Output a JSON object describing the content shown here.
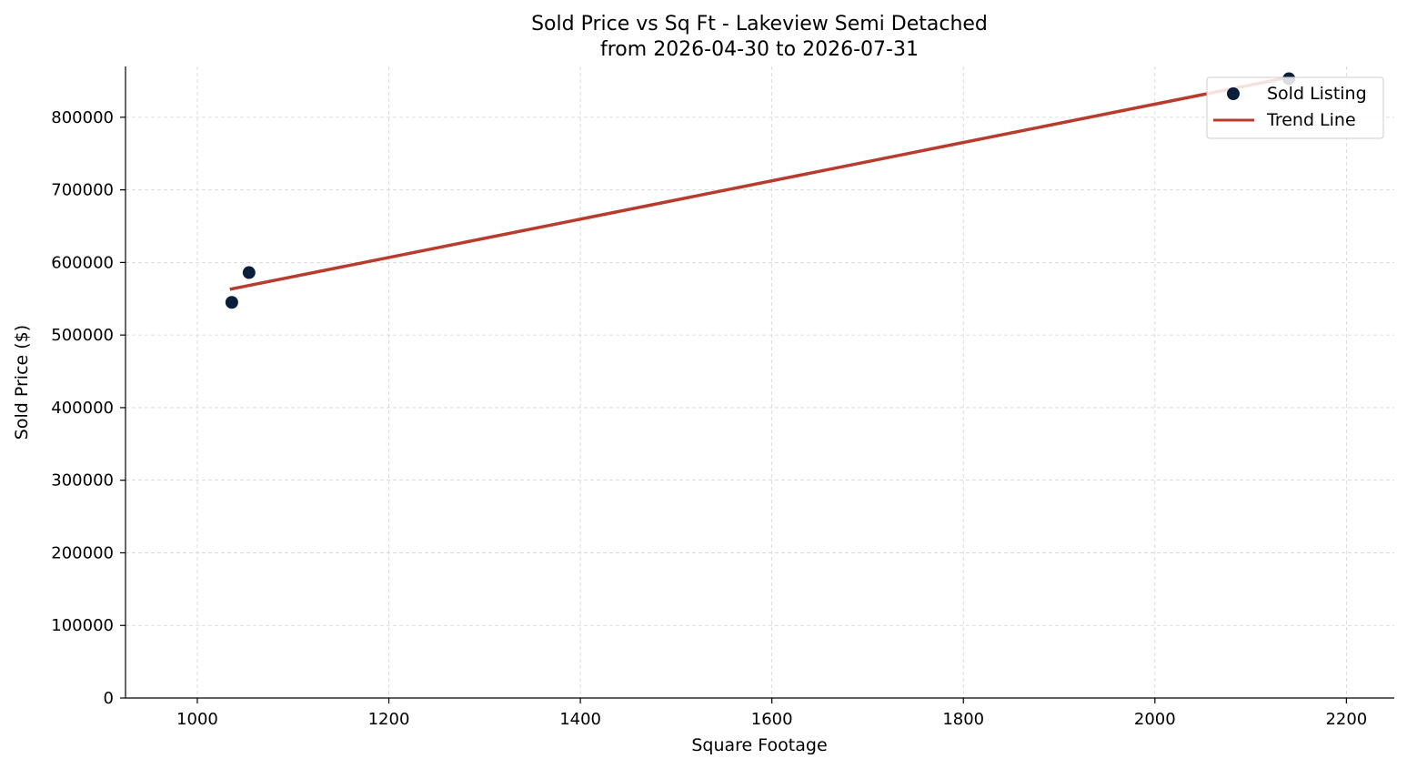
{
  "chart_data": {
    "type": "scatter",
    "title": "Sold Price vs Sq Ft - Lakeview Semi Detached",
    "subtitle": "from 2026-04-30 to 2026-07-31",
    "xlabel": "Square Footage",
    "ylabel": "Sold Price ($)",
    "xlim": [
      925,
      2250
    ],
    "ylim": [
      0,
      870000
    ],
    "xticks": [
      1000,
      1200,
      1400,
      1600,
      1800,
      2000,
      2200
    ],
    "yticks": [
      0,
      100000,
      200000,
      300000,
      400000,
      500000,
      600000,
      700000,
      800000
    ],
    "grid": true,
    "legend_position": "top-right",
    "series": [
      {
        "name": "Sold Listing",
        "kind": "scatter",
        "color": "#0b1f3d",
        "points": [
          {
            "x": 1036,
            "y": 545000
          },
          {
            "x": 1054,
            "y": 586000
          },
          {
            "x": 2140,
            "y": 853000
          }
        ]
      },
      {
        "name": "Trend Line",
        "kind": "line",
        "color": "#b83c2b",
        "points": [
          {
            "x": 1034,
            "y": 563000
          },
          {
            "x": 2140,
            "y": 855000
          }
        ]
      }
    ]
  }
}
